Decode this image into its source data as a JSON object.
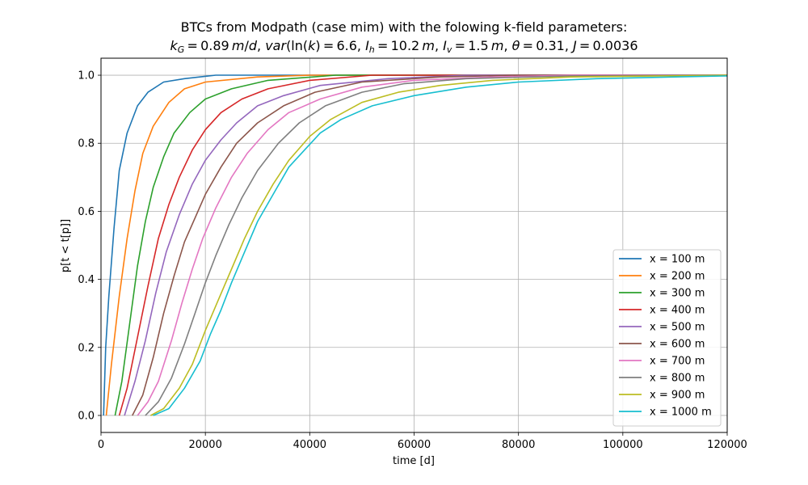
{
  "chart_data": {
    "type": "line",
    "title": "BTCs from Modpath (case mim) with the folowing k-field parameters:",
    "subtitle": "k_G = 0.89 m/d, var(ln(k)) = 6.6, I_h = 10.2 m, I_v = 1.5 m, θ = 0.31, J = 0.0036",
    "subtitle_parts": {
      "kG": "0.89",
      "var": "6.6",
      "Ih": "10.2",
      "Iv": "1.5",
      "theta": "0.31",
      "J": "0.0036"
    },
    "xlabel": "time [d]",
    "ylabel": "p[t < t[p]]",
    "xlim": [
      0,
      120000
    ],
    "ylim": [
      -0.05,
      1.05
    ],
    "xticks": [
      0,
      20000,
      40000,
      60000,
      80000,
      100000,
      120000
    ],
    "yticks": [
      0.0,
      0.2,
      0.4,
      0.6,
      0.8,
      1.0
    ],
    "xtick_labels": [
      "0",
      "20000",
      "40000",
      "60000",
      "80000",
      "100000",
      "120000"
    ],
    "ytick_labels": [
      "0.0",
      "0.2",
      "0.4",
      "0.6",
      "0.8",
      "1.0"
    ],
    "grid": true,
    "legend_position": "lower right",
    "series": [
      {
        "name": "x = 100 m",
        "color": "#1f77b4",
        "points": [
          [
            500,
            0
          ],
          [
            900,
            0.2
          ],
          [
            1500,
            0.35
          ],
          [
            2500,
            0.55
          ],
          [
            3500,
            0.72
          ],
          [
            5000,
            0.83
          ],
          [
            7000,
            0.91
          ],
          [
            9000,
            0.95
          ],
          [
            12000,
            0.98
          ],
          [
            16000,
            0.99
          ],
          [
            22000,
            1.0
          ],
          [
            120000,
            1.0
          ]
        ]
      },
      {
        "name": "x = 200 m",
        "color": "#ff7f0e",
        "points": [
          [
            1000,
            0
          ],
          [
            2000,
            0.15
          ],
          [
            3500,
            0.35
          ],
          [
            5000,
            0.52
          ],
          [
            6500,
            0.66
          ],
          [
            8000,
            0.77
          ],
          [
            10000,
            0.85
          ],
          [
            13000,
            0.92
          ],
          [
            16000,
            0.96
          ],
          [
            20000,
            0.98
          ],
          [
            30000,
            0.995
          ],
          [
            40000,
            1.0
          ],
          [
            120000,
            1.0
          ]
        ]
      },
      {
        "name": "x = 300 m",
        "color": "#2ca02c",
        "points": [
          [
            2700,
            0
          ],
          [
            4000,
            0.1
          ],
          [
            5500,
            0.27
          ],
          [
            7000,
            0.44
          ],
          [
            8500,
            0.57
          ],
          [
            10000,
            0.67
          ],
          [
            12000,
            0.76
          ],
          [
            14000,
            0.83
          ],
          [
            17000,
            0.89
          ],
          [
            20000,
            0.93
          ],
          [
            25000,
            0.96
          ],
          [
            32000,
            0.985
          ],
          [
            45000,
            1.0
          ],
          [
            120000,
            1.0
          ]
        ]
      },
      {
        "name": "x = 400 m",
        "color": "#d62728",
        "points": [
          [
            3500,
            0
          ],
          [
            5000,
            0.08
          ],
          [
            7000,
            0.23
          ],
          [
            9000,
            0.38
          ],
          [
            11000,
            0.52
          ],
          [
            13000,
            0.62
          ],
          [
            15000,
            0.7
          ],
          [
            17500,
            0.78
          ],
          [
            20000,
            0.84
          ],
          [
            23000,
            0.89
          ],
          [
            27000,
            0.93
          ],
          [
            32000,
            0.96
          ],
          [
            40000,
            0.985
          ],
          [
            52000,
            1.0
          ],
          [
            120000,
            1.0
          ]
        ]
      },
      {
        "name": "x = 500 m",
        "color": "#9467bd",
        "points": [
          [
            4500,
            0
          ],
          [
            6500,
            0.1
          ],
          [
            8500,
            0.22
          ],
          [
            10500,
            0.36
          ],
          [
            12500,
            0.48
          ],
          [
            15000,
            0.59
          ],
          [
            17500,
            0.68
          ],
          [
            20000,
            0.75
          ],
          [
            23000,
            0.81
          ],
          [
            26000,
            0.86
          ],
          [
            30000,
            0.91
          ],
          [
            35000,
            0.94
          ],
          [
            42000,
            0.97
          ],
          [
            55000,
            0.99
          ],
          [
            70000,
            1.0
          ],
          [
            120000,
            1.0
          ]
        ]
      },
      {
        "name": "x = 600 m",
        "color": "#8c564b",
        "points": [
          [
            6000,
            0
          ],
          [
            8000,
            0.06
          ],
          [
            10000,
            0.17
          ],
          [
            12000,
            0.3
          ],
          [
            14000,
            0.41
          ],
          [
            16000,
            0.51
          ],
          [
            18000,
            0.58
          ],
          [
            20000,
            0.65
          ],
          [
            23000,
            0.73
          ],
          [
            26000,
            0.8
          ],
          [
            30000,
            0.86
          ],
          [
            35000,
            0.91
          ],
          [
            41000,
            0.95
          ],
          [
            50000,
            0.98
          ],
          [
            65000,
            0.995
          ],
          [
            80000,
            1.0
          ],
          [
            120000,
            1.0
          ]
        ]
      },
      {
        "name": "x = 700 m",
        "color": "#e377c2",
        "points": [
          [
            7000,
            0
          ],
          [
            9000,
            0.04
          ],
          [
            11000,
            0.1
          ],
          [
            13500,
            0.22
          ],
          [
            15500,
            0.33
          ],
          [
            17500,
            0.43
          ],
          [
            19500,
            0.52
          ],
          [
            22000,
            0.61
          ],
          [
            25000,
            0.7
          ],
          [
            28000,
            0.77
          ],
          [
            32000,
            0.84
          ],
          [
            36000,
            0.89
          ],
          [
            42000,
            0.93
          ],
          [
            50000,
            0.965
          ],
          [
            60000,
            0.985
          ],
          [
            75000,
            0.995
          ],
          [
            90000,
            1.0
          ],
          [
            120000,
            1.0
          ]
        ]
      },
      {
        "name": "x = 800 m",
        "color": "#7f7f7f",
        "points": [
          [
            8500,
            0
          ],
          [
            11000,
            0.04
          ],
          [
            13500,
            0.11
          ],
          [
            16000,
            0.21
          ],
          [
            18000,
            0.3
          ],
          [
            20000,
            0.39
          ],
          [
            22000,
            0.47
          ],
          [
            24500,
            0.56
          ],
          [
            27000,
            0.64
          ],
          [
            30000,
            0.72
          ],
          [
            34000,
            0.8
          ],
          [
            38000,
            0.86
          ],
          [
            43000,
            0.91
          ],
          [
            50000,
            0.95
          ],
          [
            58000,
            0.975
          ],
          [
            70000,
            0.99
          ],
          [
            90000,
            0.998
          ],
          [
            120000,
            1.0
          ]
        ]
      },
      {
        "name": "x = 900 m",
        "color": "#bcbd22",
        "points": [
          [
            9500,
            0
          ],
          [
            12000,
            0.02
          ],
          [
            15000,
            0.08
          ],
          [
            17500,
            0.15
          ],
          [
            20000,
            0.25
          ],
          [
            22500,
            0.34
          ],
          [
            25000,
            0.43
          ],
          [
            27500,
            0.52
          ],
          [
            30000,
            0.6
          ],
          [
            33000,
            0.68
          ],
          [
            36000,
            0.75
          ],
          [
            40000,
            0.82
          ],
          [
            44000,
            0.87
          ],
          [
            50000,
            0.92
          ],
          [
            57000,
            0.95
          ],
          [
            65000,
            0.97
          ],
          [
            75000,
            0.985
          ],
          [
            90000,
            0.995
          ],
          [
            120000,
            1.0
          ]
        ]
      },
      {
        "name": "x = 1000 m",
        "color": "#17becf",
        "points": [
          [
            10000,
            0
          ],
          [
            13000,
            0.02
          ],
          [
            16000,
            0.08
          ],
          [
            19000,
            0.16
          ],
          [
            21000,
            0.24
          ],
          [
            23000,
            0.31
          ],
          [
            25000,
            0.39
          ],
          [
            27500,
            0.48
          ],
          [
            30000,
            0.57
          ],
          [
            33000,
            0.65
          ],
          [
            36000,
            0.73
          ],
          [
            39000,
            0.78
          ],
          [
            42000,
            0.83
          ],
          [
            46000,
            0.87
          ],
          [
            52000,
            0.91
          ],
          [
            60000,
            0.94
          ],
          [
            70000,
            0.965
          ],
          [
            80000,
            0.98
          ],
          [
            95000,
            0.99
          ],
          [
            110000,
            0.995
          ],
          [
            120000,
            0.998
          ]
        ]
      }
    ]
  }
}
